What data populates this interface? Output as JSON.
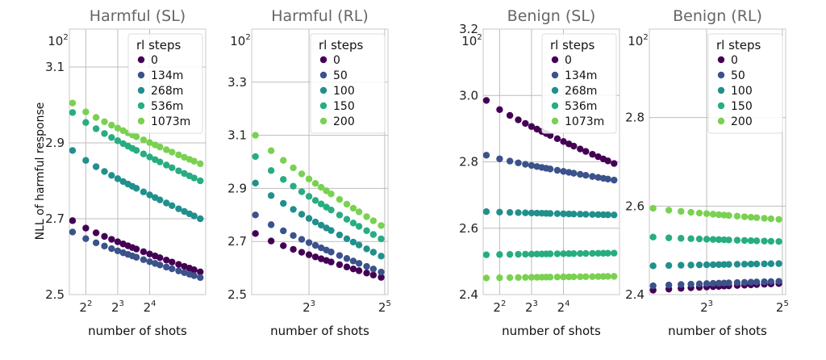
{
  "figure": {
    "ylabel": "NLL of harmful response",
    "xlabel": "number of shots",
    "colors": [
      "#440154",
      "#3b528b",
      "#21908d",
      "#27ad81",
      "#7ad151"
    ]
  },
  "chart_data": [
    {
      "type": "scatter",
      "title": "Harmful (SL)",
      "xlabel": "number of shots",
      "ylabel": "NLL of harmful response",
      "x_scale": "log2",
      "xlim": [
        2.8,
        54
      ],
      "ylim": [
        2.5,
        3.2
      ],
      "yticks": [
        {
          "v": 2.5,
          "label": "2.5"
        },
        {
          "v": 2.7,
          "label": "2.7"
        },
        {
          "v": 2.9,
          "label": "2.9"
        },
        {
          "v": 3.1,
          "label": "3.1"
        }
      ],
      "ytop_label": {
        "base": "10",
        "exp": "2"
      },
      "xticks": [
        {
          "v": 4,
          "base": "2",
          "exp": "2"
        },
        {
          "v": 8,
          "base": "2",
          "exp": "3"
        },
        {
          "v": 16,
          "base": "2",
          "exp": "4"
        }
      ],
      "legend": {
        "title": "rl steps",
        "position": "top-right"
      },
      "x": [
        3,
        4,
        5,
        6,
        7,
        8,
        9,
        10,
        11,
        12,
        14,
        16,
        18,
        20,
        23,
        26,
        30,
        34,
        38,
        42,
        48
      ],
      "series": [
        {
          "name": "0",
          "start": 2.695,
          "end": 2.56
        },
        {
          "name": "134m",
          "start": 2.665,
          "end": 2.545
        },
        {
          "name": "268m",
          "start": 2.88,
          "end": 2.7
        },
        {
          "name": "536m",
          "start": 2.98,
          "end": 2.8
        },
        {
          "name": "1073m",
          "start": 3.005,
          "end": 2.845
        }
      ]
    },
    {
      "type": "scatter",
      "title": "Harmful (RL)",
      "xlabel": "number of shots",
      "ylabel": "",
      "x_scale": "log2",
      "xlim": [
        2.8,
        34
      ],
      "ylim": [
        2.5,
        3.5
      ],
      "yticks": [
        {
          "v": 2.5,
          "label": "2.5"
        },
        {
          "v": 2.7,
          "label": "2.7"
        },
        {
          "v": 2.9,
          "label": "2.9"
        },
        {
          "v": 3.1,
          "label": "3.1"
        },
        {
          "v": 3.3,
          "label": "3.3"
        }
      ],
      "ytop_label": {
        "base": "10",
        "exp": "2"
      },
      "xticks": [
        {
          "v": 8,
          "base": "2",
          "exp": "3"
        },
        {
          "v": 32,
          "base": "2",
          "exp": "5"
        }
      ],
      "legend": {
        "title": "rl steps",
        "position": "top-right"
      },
      "x": [
        3,
        4,
        5,
        6,
        7,
        8,
        9,
        10,
        11,
        12,
        14,
        16,
        18,
        20,
        23,
        26,
        30
      ],
      "series": [
        {
          "name": "0",
          "start": 2.73,
          "end": 2.565
        },
        {
          "name": "50",
          "start": 2.8,
          "end": 2.585
        },
        {
          "name": "100",
          "start": 2.92,
          "end": 2.645
        },
        {
          "name": "150",
          "start": 3.02,
          "end": 2.71
        },
        {
          "name": "200",
          "start": 3.1,
          "end": 2.76
        }
      ]
    },
    {
      "type": "scatter",
      "title": "Benign (SL)",
      "xlabel": "number of shots",
      "ylabel": "",
      "x_scale": "log2",
      "xlim": [
        2.8,
        54
      ],
      "ylim": [
        2.4,
        3.2
      ],
      "yticks": [
        {
          "v": 2.4,
          "label": "2.4"
        },
        {
          "v": 2.6,
          "label": "2.6"
        },
        {
          "v": 2.8,
          "label": "2.8"
        },
        {
          "v": 3.0,
          "label": "3.0"
        },
        {
          "v": 3.2,
          "label": "3.2"
        }
      ],
      "ytop_label": {
        "base": "10",
        "exp": "2"
      },
      "xticks": [
        {
          "v": 4,
          "base": "2",
          "exp": "2"
        },
        {
          "v": 8,
          "base": "2",
          "exp": "3"
        },
        {
          "v": 16,
          "base": "2",
          "exp": "4"
        }
      ],
      "legend": {
        "title": "rl steps",
        "position": "top-right"
      },
      "x": [
        3,
        4,
        5,
        6,
        7,
        8,
        9,
        10,
        11,
        12,
        14,
        16,
        18,
        20,
        23,
        26,
        30,
        34,
        38,
        42,
        48
      ],
      "series": [
        {
          "name": "0",
          "start": 2.985,
          "end": 2.795
        },
        {
          "name": "134m",
          "start": 2.82,
          "end": 2.745
        },
        {
          "name": "268m",
          "start": 2.65,
          "end": 2.64
        },
        {
          "name": "536m",
          "start": 2.52,
          "end": 2.525
        },
        {
          "name": "1073m",
          "start": 2.45,
          "end": 2.455
        }
      ]
    },
    {
      "type": "scatter",
      "title": "Benign (RL)",
      "xlabel": "number of shots",
      "ylabel": "",
      "x_scale": "log2",
      "xlim": [
        2.8,
        34
      ],
      "ylim": [
        2.4,
        3.0
      ],
      "yticks": [
        {
          "v": 2.4,
          "label": "2.4"
        },
        {
          "v": 2.6,
          "label": "2.6"
        },
        {
          "v": 2.8,
          "label": "2.8"
        }
      ],
      "ytop_label": {
        "base": "10",
        "exp": "2"
      },
      "xticks": [
        {
          "v": 8,
          "base": "2",
          "exp": "3"
        },
        {
          "v": 32,
          "base": "2",
          "exp": "5"
        }
      ],
      "legend": {
        "title": "rl steps",
        "position": "top-right"
      },
      "x": [
        3,
        4,
        5,
        6,
        7,
        8,
        9,
        10,
        11,
        12,
        14,
        16,
        18,
        20,
        23,
        26,
        30
      ],
      "series": [
        {
          "name": "0",
          "start": 2.41,
          "end": 2.425
        },
        {
          "name": "50",
          "start": 2.42,
          "end": 2.43
        },
        {
          "name": "100",
          "start": 2.465,
          "end": 2.47
        },
        {
          "name": "150",
          "start": 2.53,
          "end": 2.52
        },
        {
          "name": "200",
          "start": 2.595,
          "end": 2.57
        }
      ]
    }
  ]
}
